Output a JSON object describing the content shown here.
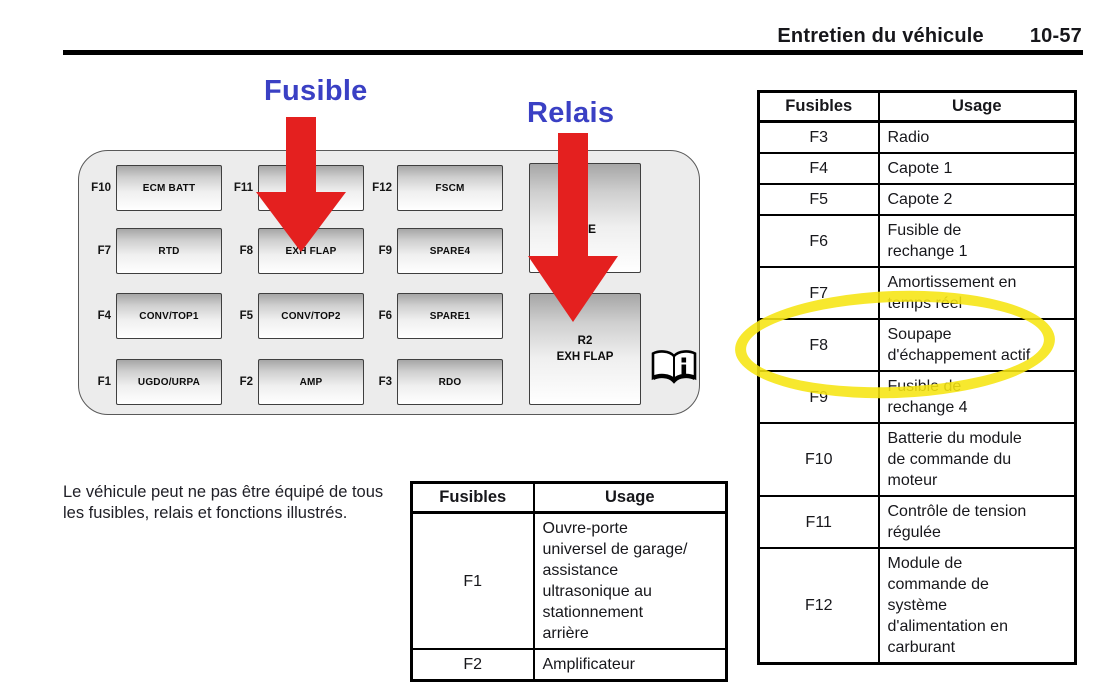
{
  "header": {
    "title": "Entretien du véhicule",
    "page_number": "10-57"
  },
  "callouts": {
    "fuse": "Fusible",
    "relay": "Relais"
  },
  "colors": {
    "callout_blue": "#3a40c4",
    "arrow_red": "#e4201f",
    "highlight_yellow": "#f6e511"
  },
  "fuse_panel": {
    "fuses": [
      {
        "id": "F10",
        "label": "ECM BATT",
        "row": 0,
        "col": 0
      },
      {
        "id": "F11",
        "label": "",
        "row": 0,
        "col": 1
      },
      {
        "id": "F12",
        "label": "FSCM",
        "row": 0,
        "col": 2
      },
      {
        "id": "F7",
        "label": "RTD",
        "row": 1,
        "col": 0
      },
      {
        "id": "F8",
        "label": "EXH FLAP",
        "row": 1,
        "col": 1
      },
      {
        "id": "F9",
        "label": "SPARE4",
        "row": 1,
        "col": 2
      },
      {
        "id": "F4",
        "label": "CONV/TOP1",
        "row": 2,
        "col": 0
      },
      {
        "id": "F5",
        "label": "CONV/TOP2",
        "row": 2,
        "col": 1
      },
      {
        "id": "F6",
        "label": "SPARE1",
        "row": 2,
        "col": 2
      },
      {
        "id": "F1",
        "label": "UGDO/URPA",
        "row": 3,
        "col": 0
      },
      {
        "id": "F2",
        "label": "AMP",
        "row": 3,
        "col": 1
      },
      {
        "id": "F3",
        "label": "RDO",
        "row": 3,
        "col": 2
      }
    ],
    "relay_top": {
      "visible_label": "E"
    },
    "relay_bottom": {
      "id": "R2",
      "label": "EXH FLAP"
    },
    "icons": {
      "manual_info": "open-book-info-icon"
    }
  },
  "note": "Le véhicule peut ne pas être équipé de tous les fusibles, relais et fonctions illustrés.",
  "left_table": {
    "col_headers": [
      "Fusibles",
      "Usage"
    ],
    "rows": [
      {
        "fuse": "F1",
        "usage": "Ouvre-porte\nuniversel de garage/\nassistance\nultrasonique au\nstationnement\narrière"
      },
      {
        "fuse": "F2",
        "usage": "Amplificateur"
      }
    ]
  },
  "right_table": {
    "col_headers": [
      "Fusibles",
      "Usage"
    ],
    "rows": [
      {
        "fuse": "F3",
        "usage": "Radio"
      },
      {
        "fuse": "F4",
        "usage": "Capote 1"
      },
      {
        "fuse": "F5",
        "usage": "Capote 2"
      },
      {
        "fuse": "F6",
        "usage": "Fusible de\nrechange 1"
      },
      {
        "fuse": "F7",
        "usage": "Amortissement en\ntemps réel"
      },
      {
        "fuse": "F8",
        "usage": "Soupape\nd'échappement actif",
        "highlighted": true
      },
      {
        "fuse": "F9",
        "usage": "Fusible de\nrechange 4"
      },
      {
        "fuse": "F10",
        "usage": "Batterie du module\nde commande du\nmoteur"
      },
      {
        "fuse": "F11",
        "usage": "Contrôle de tension\nrégulée"
      },
      {
        "fuse": "F12",
        "usage": "Module de\ncommande de\nsystème\nd'alimentation en\ncarburant"
      }
    ]
  }
}
